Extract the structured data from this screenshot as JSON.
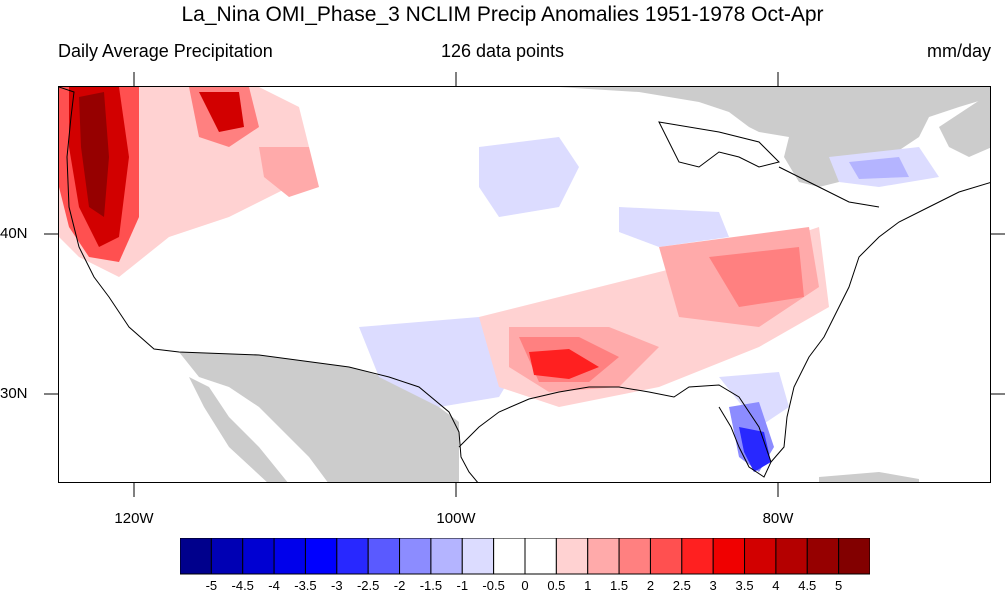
{
  "title": "La_Nina OMI_Phase_3 NCLIM Precip Anomalies 1951-1978 Oct-Apr",
  "subtitle_left": "Daily Average Precipitation",
  "subtitle_center": "126 data points",
  "subtitle_right": "mm/day",
  "lon_labels": [
    "120W",
    "100W",
    "80W"
  ],
  "lat_labels": [
    "40N",
    "30N"
  ],
  "colorbar": {
    "labels": [
      "-5",
      "-4.5",
      "-4",
      "-3.5",
      "-3",
      "-2.5",
      "-2",
      "-1.5",
      "-1",
      "-0.5",
      "0",
      "0.5",
      "1",
      "1.5",
      "2",
      "2.5",
      "3",
      "3.5",
      "4",
      "4.5",
      "5"
    ],
    "colors": [
      "#00008c",
      "#0000b4",
      "#0000d2",
      "#0000eb",
      "#0000ff",
      "#2828ff",
      "#5a5aff",
      "#8c8cff",
      "#b4b4ff",
      "#dcdcff",
      "#ffffff",
      "#ffffff",
      "#ffd2d2",
      "#ffaaaa",
      "#ff8080",
      "#ff5050",
      "#ff2020",
      "#f00000",
      "#d20000",
      "#b40000",
      "#960000",
      "#820000"
    ]
  },
  "colors": {
    "land_outside": "#cccccc",
    "ocean": "#ffffff",
    "border": "#000000"
  }
}
